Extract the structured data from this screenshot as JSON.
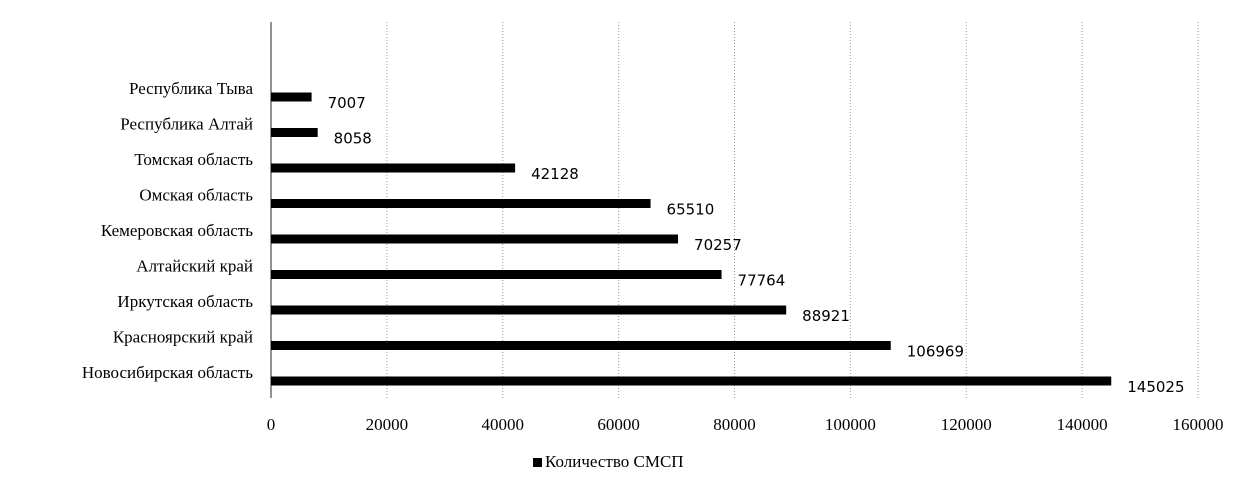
{
  "chart_data": {
    "type": "bar",
    "orientation": "horizontal",
    "categories": [
      "Новосибирская область",
      "Красноярский край",
      "Иркутская область",
      "Алтайский край",
      "Кемеровская область",
      "Омская область",
      "Томская область",
      "Республика Алтай",
      "Республика Тыва"
    ],
    "series": [
      {
        "name": "Количество СМСП",
        "values": [
          145025,
          106969,
          88921,
          77764,
          70257,
          65510,
          42128,
          8058,
          7007
        ],
        "data_labels": [
          "145025",
          "106969",
          "88921",
          "77764",
          "70257",
          "65510",
          "42128",
          "8058",
          "7007"
        ],
        "color": "#000000"
      }
    ],
    "xlim": [
      0,
      160000
    ],
    "x_ticks": [
      0,
      20000,
      40000,
      60000,
      80000,
      100000,
      120000,
      140000,
      160000
    ],
    "x_tick_labels": [
      "0",
      "20000",
      "40000",
      "60000",
      "80000",
      "100000",
      "120000",
      "140000",
      "160000"
    ],
    "title": "",
    "xlabel": "",
    "ylabel": "",
    "grid": "vertical-dotted",
    "legend": {
      "placement": "bottom-center",
      "entries": [
        "Количество СМСП"
      ]
    }
  }
}
